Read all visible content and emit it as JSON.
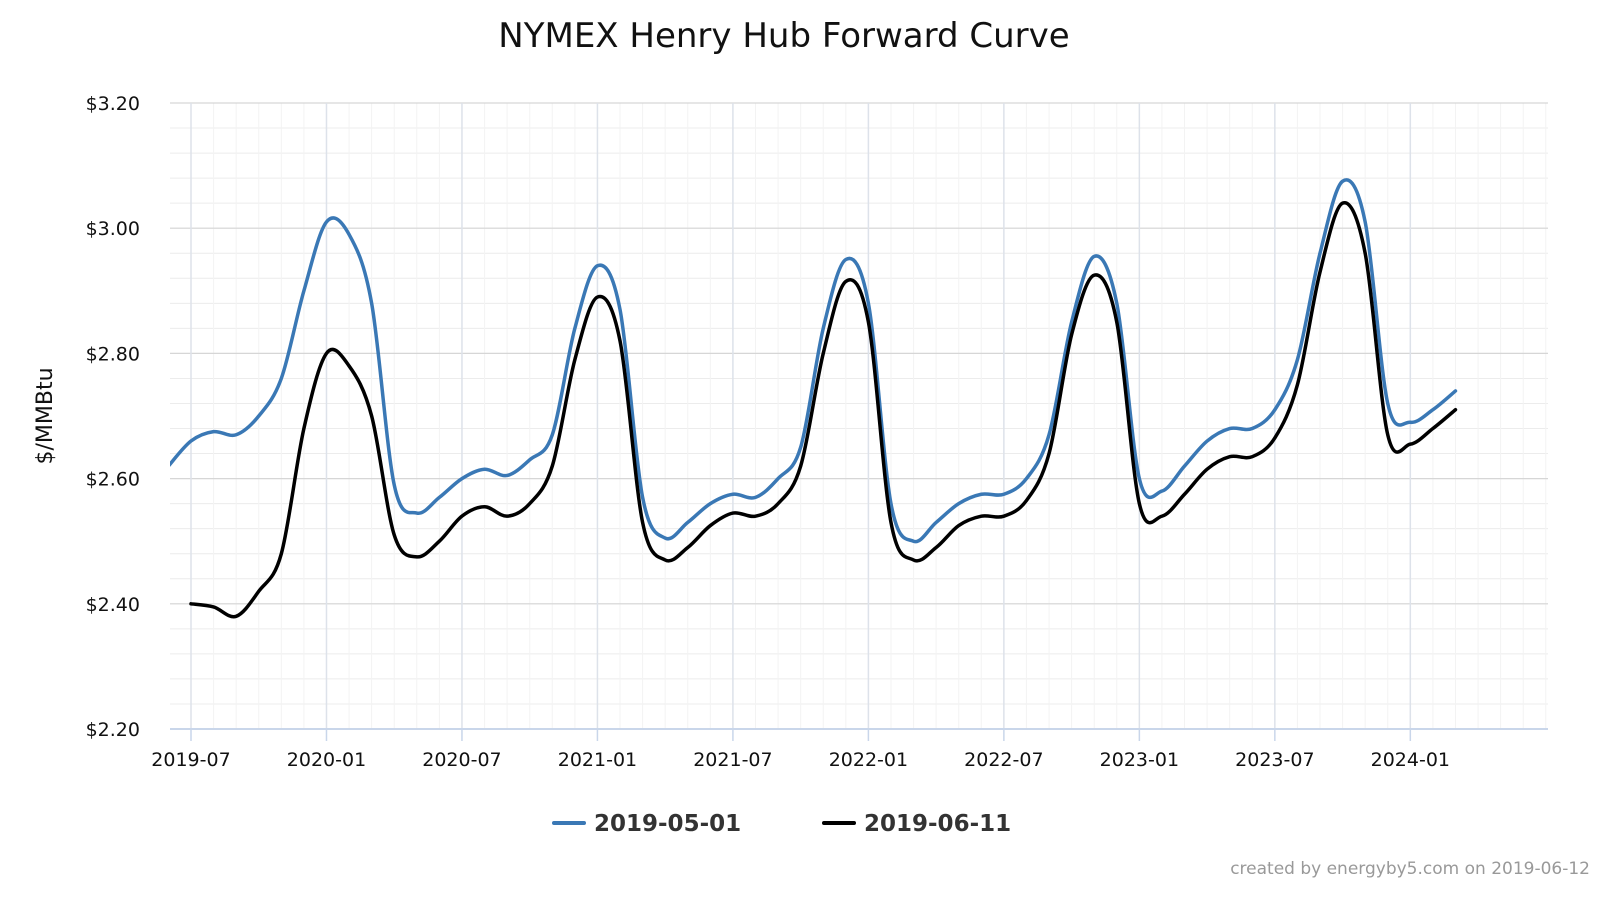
{
  "chart_data": {
    "type": "line",
    "title": "NYMEX Henry Hub Forward Curve",
    "xlabel": "",
    "ylabel": "$/MMBtu",
    "ylim": [
      2.2,
      3.2
    ],
    "xlim": [
      "2019-07",
      "2024-06"
    ],
    "y_ticks": [
      "$2.20",
      "$2.40",
      "$2.60",
      "$2.80",
      "$3.00",
      "$3.20"
    ],
    "y_tick_values": [
      2.2,
      2.4,
      2.6,
      2.8,
      3.0,
      3.2
    ],
    "x_ticks": [
      "2019-07",
      "2020-01",
      "2020-07",
      "2021-01",
      "2021-07",
      "2022-01",
      "2022-07",
      "2023-01",
      "2023-07",
      "2024-01"
    ],
    "grid": true,
    "legend_position": "bottom-center",
    "series": [
      {
        "name": "2019-05-01",
        "color": "#3a78b5",
        "start": "2019-06",
        "values": [
          2.62,
          2.66,
          2.675,
          2.67,
          2.7,
          2.76,
          2.9,
          3.01,
          2.99,
          2.88,
          2.59,
          2.545,
          2.57,
          2.6,
          2.615,
          2.605,
          2.63,
          2.67,
          2.84,
          2.94,
          2.87,
          2.57,
          2.505,
          2.53,
          2.56,
          2.575,
          2.57,
          2.6,
          2.65,
          2.84,
          2.95,
          2.88,
          2.56,
          2.5,
          2.53,
          2.56,
          2.575,
          2.575,
          2.6,
          2.67,
          2.85,
          2.955,
          2.88,
          2.6,
          2.58,
          2.62,
          2.66,
          2.68,
          2.68,
          2.71,
          2.79,
          2.96,
          3.075,
          3.01,
          2.72,
          2.69,
          2.71,
          2.74
        ]
      },
      {
        "name": "2019-06-11",
        "color": "#000000",
        "start": "2019-07",
        "values": [
          2.4,
          2.395,
          2.38,
          2.42,
          2.48,
          2.68,
          2.8,
          2.78,
          2.7,
          2.51,
          2.475,
          2.5,
          2.54,
          2.555,
          2.54,
          2.56,
          2.62,
          2.79,
          2.89,
          2.82,
          2.53,
          2.47,
          2.49,
          2.525,
          2.545,
          2.54,
          2.56,
          2.62,
          2.8,
          2.915,
          2.85,
          2.53,
          2.47,
          2.49,
          2.525,
          2.54,
          2.54,
          2.565,
          2.64,
          2.83,
          2.925,
          2.85,
          2.56,
          2.54,
          2.575,
          2.615,
          2.635,
          2.635,
          2.665,
          2.75,
          2.93,
          3.04,
          2.96,
          2.67,
          2.655,
          2.68,
          2.71
        ]
      }
    ]
  },
  "credit": "created by energyby5.com on 2019-06-12"
}
